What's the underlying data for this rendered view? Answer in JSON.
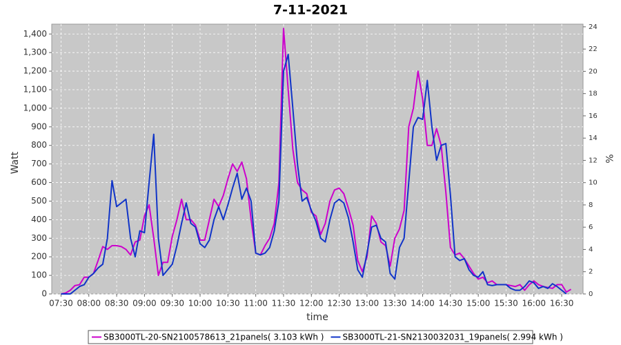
{
  "chart_data": {
    "type": "line",
    "title": "7-11-2021",
    "x_label": "time",
    "y_label": "Watt",
    "y2_label": "%",
    "x": [
      "07:30",
      "07:35",
      "07:40",
      "07:45",
      "07:50",
      "07:55",
      "08:00",
      "08:05",
      "08:10",
      "08:15",
      "08:20",
      "08:25",
      "08:30",
      "08:35",
      "08:40",
      "08:45",
      "08:50",
      "08:55",
      "09:00",
      "09:05",
      "09:10",
      "09:15",
      "09:20",
      "09:25",
      "09:30",
      "09:35",
      "09:40",
      "09:45",
      "09:50",
      "09:55",
      "10:00",
      "10:05",
      "10:10",
      "10:15",
      "10:20",
      "10:25",
      "10:30",
      "10:35",
      "10:40",
      "10:45",
      "10:50",
      "10:55",
      "11:00",
      "11:05",
      "11:10",
      "11:15",
      "11:20",
      "11:25",
      "11:30",
      "11:35",
      "11:40",
      "11:45",
      "11:50",
      "11:55",
      "12:00",
      "12:05",
      "12:10",
      "12:15",
      "12:20",
      "12:25",
      "12:30",
      "12:35",
      "12:40",
      "12:45",
      "12:50",
      "12:55",
      "13:00",
      "13:05",
      "13:10",
      "13:15",
      "13:20",
      "13:25",
      "13:30",
      "13:35",
      "13:40",
      "13:45",
      "13:50",
      "13:55",
      "14:00",
      "14:05",
      "14:10",
      "14:15",
      "14:20",
      "14:25",
      "14:30",
      "14:35",
      "14:40",
      "14:45",
      "14:50",
      "14:55",
      "15:00",
      "15:05",
      "15:10",
      "15:15",
      "15:20",
      "15:25",
      "15:30",
      "15:35",
      "15:40",
      "15:45",
      "15:50",
      "15:55",
      "16:00",
      "16:05",
      "16:10",
      "16:15",
      "16:20",
      "16:25",
      "16:30",
      "16:35",
      "16:40"
    ],
    "series": [
      {
        "name": "SB3000TL-20-SN2100578613_21panels( 3.103 kWh )",
        "color": "#cc00cc",
        "values": [
          0,
          5,
          20,
          45,
          50,
          90,
          90,
          110,
          180,
          255,
          240,
          260,
          260,
          255,
          240,
          210,
          280,
          290,
          420,
          480,
          300,
          100,
          170,
          170,
          310,
          400,
          510,
          400,
          400,
          370,
          290,
          290,
          400,
          510,
          470,
          530,
          620,
          700,
          660,
          710,
          620,
          400,
          220,
          210,
          260,
          300,
          380,
          600,
          1430,
          1100,
          780,
          600,
          560,
          540,
          440,
          420,
          320,
          380,
          500,
          560,
          570,
          540,
          460,
          370,
          180,
          120,
          200,
          420,
          380,
          280,
          260,
          150,
          300,
          350,
          450,
          900,
          1000,
          1200,
          1050,
          800,
          800,
          890,
          800,
          550,
          250,
          210,
          220,
          190,
          150,
          110,
          80,
          90,
          60,
          70,
          50,
          50,
          50,
          45,
          40,
          50,
          20,
          50,
          70,
          50,
          40,
          35,
          30,
          50,
          50,
          10,
          25
        ]
      },
      {
        "name": "SB3000TL-21-SN2130032031_19panels( 2.994 kWh )",
        "color": "#1034c8",
        "values": [
          0,
          0,
          0,
          20,
          40,
          50,
          90,
          110,
          140,
          160,
          300,
          610,
          470,
          490,
          510,
          300,
          200,
          340,
          330,
          600,
          860,
          300,
          100,
          130,
          160,
          260,
          380,
          490,
          380,
          360,
          270,
          250,
          290,
          400,
          470,
          400,
          480,
          570,
          650,
          510,
          570,
          500,
          220,
          210,
          220,
          250,
          340,
          500,
          1200,
          1290,
          1000,
          700,
          500,
          520,
          450,
          390,
          300,
          280,
          400,
          490,
          510,
          490,
          410,
          280,
          130,
          90,
          220,
          360,
          370,
          300,
          280,
          110,
          80,
          250,
          300,
          600,
          900,
          950,
          940,
          1150,
          900,
          720,
          800,
          810,
          530,
          200,
          180,
          190,
          130,
          100,
          90,
          120,
          50,
          45,
          50,
          50,
          50,
          30,
          20,
          20,
          40,
          70,
          60,
          30,
          40,
          30,
          55,
          40,
          20,
          0,
          null
        ]
      }
    ],
    "xlim": [
      "07:20",
      "16:53"
    ],
    "xticks": [
      "07:30",
      "08:00",
      "08:30",
      "09:00",
      "09:30",
      "10:00",
      "10:30",
      "11:00",
      "11:30",
      "12:00",
      "12:30",
      "13:00",
      "13:30",
      "14:00",
      "14:30",
      "15:00",
      "15:30",
      "16:00",
      "16:30"
    ],
    "ylim": [
      0,
      1453
    ],
    "yticks": [
      0,
      100,
      200,
      300,
      400,
      500,
      600,
      700,
      800,
      900,
      {
        "value": 1000,
        "label": "1,000"
      },
      {
        "value": 1100,
        "label": "1,100"
      },
      {
        "value": 1200,
        "label": "1,200"
      },
      {
        "value": 1300,
        "label": "1,300"
      },
      {
        "value": 1400,
        "label": "1,400"
      }
    ],
    "y2lim": [
      0,
      24.24
    ],
    "y2ticks": [
      0,
      2,
      4,
      6,
      8,
      10,
      12,
      14,
      16,
      18,
      20,
      22,
      24
    ],
    "grid": true,
    "legend": "bottom"
  }
}
